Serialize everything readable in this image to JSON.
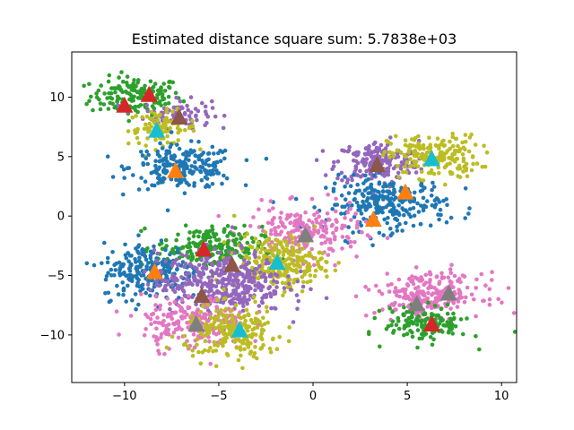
{
  "chart_data": {
    "type": "scatter",
    "title": "Estimated distance square sum: 5.7838e+03",
    "xlabel": "",
    "ylabel": "",
    "xlim": [
      -12.8,
      10.8
    ],
    "ylim": [
      -14.0,
      13.8
    ],
    "xticks": [
      -10,
      -5,
      0,
      5,
      10
    ],
    "yticks": [
      -10,
      -5,
      0,
      5,
      10
    ],
    "xtick_labels": [
      "−10",
      "−5",
      "0",
      "5",
      "10"
    ],
    "ytick_labels": [
      "−10",
      "−5",
      "0",
      "5",
      "10"
    ],
    "grid": false,
    "legend": "none",
    "colors": {
      "blue": "#1f77b4",
      "orange": "#ff7f0e",
      "green": "#2ca02c",
      "red": "#d62728",
      "purple": "#9467bd",
      "brown": "#8c564b",
      "pink": "#e377c2",
      "gray": "#7f7f7f",
      "olive": "#bcbd22",
      "cyan": "#17becf"
    },
    "point_clusters": [
      {
        "color": "green",
        "center": [
          -9.4,
          10.1
        ],
        "spread": [
          1.2,
          0.8
        ],
        "count": 160
      },
      {
        "color": "purple",
        "center": [
          -7.2,
          8.6
        ],
        "spread": [
          0.9,
          0.6
        ],
        "count": 90
      },
      {
        "color": "olive",
        "center": [
          -8.0,
          7.4
        ],
        "spread": [
          0.9,
          0.7
        ],
        "count": 90
      },
      {
        "color": "blue",
        "center": [
          -6.9,
          4.1
        ],
        "spread": [
          1.4,
          0.9
        ],
        "count": 220
      },
      {
        "color": "purple",
        "center": [
          3.4,
          4.5
        ],
        "spread": [
          1.1,
          0.9
        ],
        "count": 200
      },
      {
        "color": "olive",
        "center": [
          6.4,
          5.0
        ],
        "spread": [
          1.2,
          0.9
        ],
        "count": 200
      },
      {
        "color": "blue",
        "center": [
          3.9,
          1.0
        ],
        "spread": [
          1.6,
          1.1
        ],
        "count": 260
      },
      {
        "color": "pink",
        "center": [
          -0.5,
          -1.4
        ],
        "spread": [
          1.5,
          1.1
        ],
        "count": 220
      },
      {
        "color": "green",
        "center": [
          -5.5,
          -2.7
        ],
        "spread": [
          1.4,
          0.9
        ],
        "count": 220
      },
      {
        "color": "blue",
        "center": [
          -8.6,
          -4.6
        ],
        "spread": [
          1.3,
          1.2
        ],
        "count": 240
      },
      {
        "color": "olive",
        "center": [
          -1.8,
          -3.9
        ],
        "spread": [
          1.2,
          1.1
        ],
        "count": 240
      },
      {
        "color": "purple",
        "center": [
          -4.9,
          -5.6
        ],
        "spread": [
          1.7,
          1.3
        ],
        "count": 420
      },
      {
        "color": "pink",
        "center": [
          -6.3,
          -9.0
        ],
        "spread": [
          1.4,
          1.1
        ],
        "count": 220
      },
      {
        "color": "olive",
        "center": [
          -4.2,
          -9.8
        ],
        "spread": [
          1.3,
          1.1
        ],
        "count": 220
      },
      {
        "color": "pink",
        "center": [
          6.2,
          -6.6
        ],
        "spread": [
          1.4,
          0.9
        ],
        "count": 240
      },
      {
        "color": "green",
        "center": [
          6.0,
          -9.1
        ],
        "spread": [
          1.1,
          0.7
        ],
        "count": 150
      }
    ],
    "centroids": [
      {
        "color": "red",
        "x": -10.0,
        "y": 9.3
      },
      {
        "color": "red",
        "x": -8.7,
        "y": 10.2
      },
      {
        "color": "brown",
        "x": -7.1,
        "y": 8.3
      },
      {
        "color": "cyan",
        "x": -8.3,
        "y": 7.2
      },
      {
        "color": "orange",
        "x": -7.3,
        "y": 3.8
      },
      {
        "color": "brown",
        "x": 3.4,
        "y": 4.3
      },
      {
        "color": "cyan",
        "x": 6.3,
        "y": 4.8
      },
      {
        "color": "orange",
        "x": 4.9,
        "y": 2.0
      },
      {
        "color": "orange",
        "x": 3.2,
        "y": -0.3
      },
      {
        "color": "gray",
        "x": -0.4,
        "y": -1.6
      },
      {
        "color": "red",
        "x": -5.8,
        "y": -2.8
      },
      {
        "color": "brown",
        "x": -4.3,
        "y": -4.1
      },
      {
        "color": "cyan",
        "x": -1.9,
        "y": -3.9
      },
      {
        "color": "orange",
        "x": -8.4,
        "y": -4.7
      },
      {
        "color": "brown",
        "x": -5.9,
        "y": -6.7
      },
      {
        "color": "gray",
        "x": -6.2,
        "y": -9.1
      },
      {
        "color": "cyan",
        "x": -3.9,
        "y": -9.6
      },
      {
        "color": "gray",
        "x": 7.2,
        "y": -6.5
      },
      {
        "color": "gray",
        "x": 5.5,
        "y": -7.4
      },
      {
        "color": "red",
        "x": 6.3,
        "y": -9.1
      }
    ]
  }
}
